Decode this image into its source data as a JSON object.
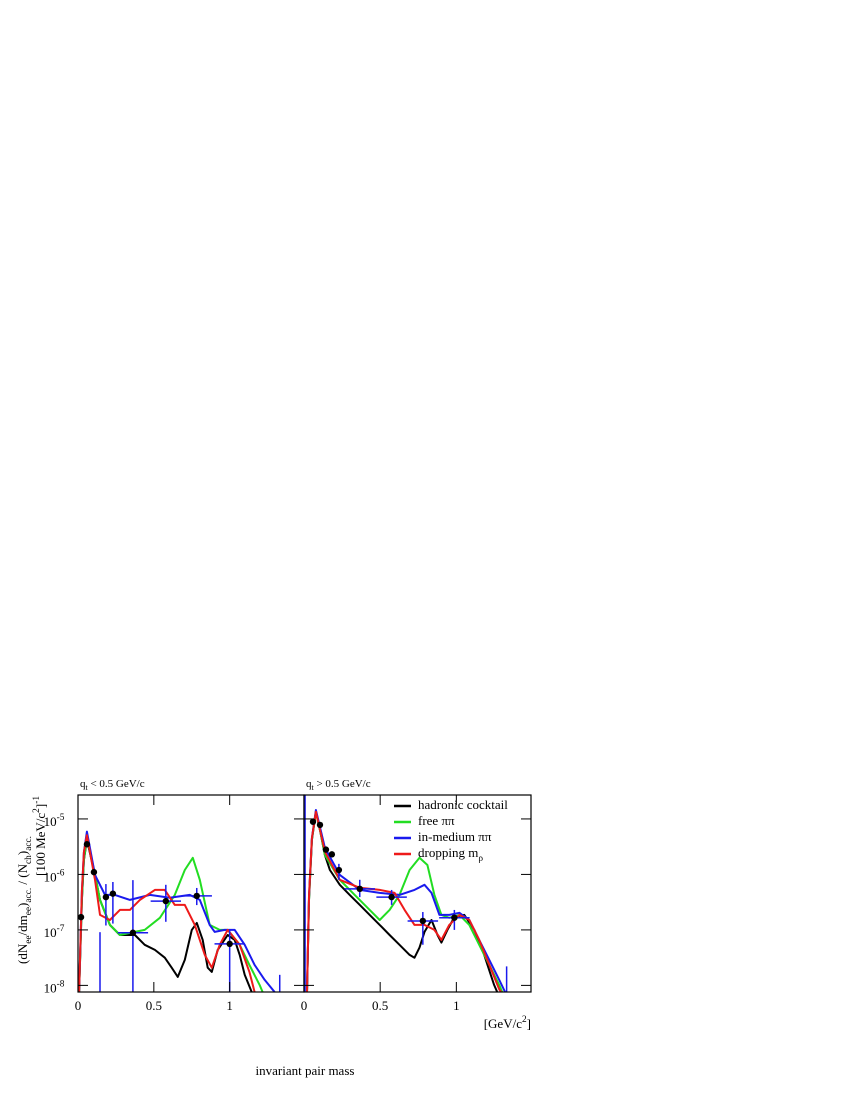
{
  "chart_data": [
    {
      "type": "line",
      "title": [
        {
          "text": "q"
        },
        {
          "text": "t",
          "shift": "sub"
        },
        {
          "text": " < 0.5 GeV/c"
        }
      ],
      "ylabel": [
        [
          {
            "text": "(dN"
          },
          {
            "text": "ee",
            "shift": "sub"
          },
          {
            "text": "/dm"
          },
          {
            "text": "ee",
            "shift": "sub"
          },
          {
            "text": ")"
          },
          {
            "text": "acc.",
            "shift": "sub"
          },
          {
            "text": " / (N"
          },
          {
            "text": "ch",
            "shift": "sub"
          },
          {
            "text": ")"
          },
          {
            "text": "acc.",
            "shift": "sub"
          }
        ],
        [
          {
            "text": "[100 MeV/c"
          },
          {
            "text": "2",
            "shift": "super"
          },
          {
            "text": "]"
          },
          {
            "text": "-1",
            "shift": "super"
          }
        ]
      ],
      "xlabel": "invariant pair mass",
      "xlim": [
        0,
        1.49
      ],
      "xticks": [
        0,
        0.5,
        1
      ],
      "ylim": [
        7.6e-09,
        2.7e-05
      ],
      "log_y": true,
      "yticks": [
        {
          "value": 1e-08,
          "label": "10",
          "sup": "-8"
        },
        {
          "value": 1e-07,
          "label": "10",
          "sup": "-7"
        },
        {
          "value": 1e-06,
          "label": "10",
          "sup": "-6"
        },
        {
          "value": 1e-05,
          "label": "10",
          "sup": "-5"
        }
      ],
      "series": [
        {
          "color": "#000000",
          "x": [
            0.007,
            0.026,
            0.039,
            0.059,
            0.112,
            0.145,
            0.21,
            0.276,
            0.375,
            0.44,
            0.507,
            0.572,
            0.618,
            0.658,
            0.704,
            0.75,
            0.783,
            0.822,
            0.855,
            0.882,
            0.921,
            0.987,
            1.033,
            1.066,
            1.099,
            1.145
          ],
          "values": [
            7.6e-09,
            3.5e-07,
            1.82e-06,
            4.2e-06,
            9.8e-07,
            3.47e-07,
            1.23e-07,
            8.1e-08,
            8.1e-08,
            5.4e-08,
            4.37e-08,
            3.15e-08,
            2.08e-08,
            1.42e-08,
            2.88e-08,
            1e-07,
            1.34e-07,
            6.6e-08,
            2.08e-08,
            1.75e-08,
            4.37e-08,
            8.1e-08,
            6.6e-08,
            3.55e-08,
            1.55e-08,
            7.6e-09
          ]
        },
        {
          "color": "#22dd22",
          "x": [
            0.007,
            0.026,
            0.039,
            0.059,
            0.112,
            0.145,
            0.21,
            0.276,
            0.375,
            0.44,
            0.54,
            0.638,
            0.704,
            0.757,
            0.803,
            0.868,
            0.934,
            0.987,
            1.066,
            1.13,
            1.197,
            1.217
          ],
          "values": [
            7.6e-09,
            3.5e-07,
            1.82e-06,
            4.6e-06,
            1e-06,
            3.47e-07,
            1.23e-07,
            8.1e-08,
            9.2e-08,
            1e-07,
            1.65e-07,
            4.27e-07,
            1.2e-06,
            1.99e-06,
            8e-07,
            1.23e-07,
            1e-07,
            1e-07,
            5.4e-08,
            2.34e-08,
            1.02e-08,
            7.6e-09
          ]
        },
        {
          "color": "#1a1aee",
          "x": [
            0.007,
            0.026,
            0.039,
            0.059,
            0.112,
            0.178,
            0.243,
            0.342,
            0.474,
            0.605,
            0.737,
            0.803,
            0.868,
            0.901,
            0.967,
            1.033,
            1.099,
            1.164,
            1.23,
            1.296
          ],
          "values": [
            7.6e-09,
            5e-07,
            2.5e-06,
            5.9e-06,
            9.8e-07,
            4.27e-07,
            4.27e-07,
            3.47e-07,
            4.27e-07,
            3.8e-07,
            4.27e-07,
            3.47e-07,
            1.23e-07,
            9.2e-08,
            1e-07,
            1e-07,
            5.4e-08,
            2.34e-08,
            1.26e-08,
            7.6e-09
          ]
        },
        {
          "color": "#ee1a1a",
          "x": [
            0.007,
            0.026,
            0.039,
            0.059,
            0.112,
            0.145,
            0.21,
            0.276,
            0.342,
            0.408,
            0.507,
            0.572,
            0.638,
            0.704,
            0.77,
            0.836,
            0.882,
            0.934,
            0.987,
            1.066,
            1.13,
            1.164
          ],
          "values": [
            7.6e-09,
            5e-07,
            2.5e-06,
            5.1e-06,
            8e-07,
            1.86e-07,
            1.51e-07,
            2.29e-07,
            2.29e-07,
            3.47e-07,
            5.25e-07,
            5.25e-07,
            2.82e-07,
            2.82e-07,
            1.23e-07,
            3.55e-08,
            2.08e-08,
            5.4e-08,
            1e-07,
            5.4e-08,
            1.75e-08,
            7.6e-09
          ]
        }
      ],
      "points": {
        "color": "#000000",
        "bar_color": "#1a1aee",
        "x": [
          0.02,
          0.059,
          0.105,
          0.184,
          0.23,
          0.362,
          0.579,
          0.783,
          1.0
        ],
        "y": [
          1.7e-07,
          3.5e-06,
          1.1e-06,
          3.9e-07,
          4.5e-07,
          8.9e-08,
          3.3e-07,
          4.1e-07,
          5.6e-08
        ],
        "xerr": [
          0,
          0,
          0,
          0,
          0,
          0.1,
          0.1,
          0.1,
          0.1
        ],
        "yhigh": [
          null,
          null,
          null,
          6.7e-07,
          7.3e-07,
          7.9e-07,
          6.5e-07,
          5.7e-07,
          1e-07
        ],
        "ylow": [
          null,
          null,
          null,
          1.2e-07,
          1.3e-07,
          1e-09,
          1.4e-07,
          2.8e-07,
          1e-09
        ]
      },
      "bars": {
        "x": [
          0.145,
          1.33
        ],
        "yhigh": [
          9.1e-08,
          1.55e-08
        ]
      }
    },
    {
      "type": "line",
      "title": [
        {
          "text": "q"
        },
        {
          "text": "t",
          "shift": "sub"
        },
        {
          "text": " > 0.5 GeV/c"
        }
      ],
      "xunit": [
        {
          "text": "[GeV/c"
        },
        {
          "text": "2",
          "shift": "super"
        },
        {
          "text": "]"
        }
      ],
      "xlim": [
        0,
        1.49
      ],
      "xticks": [
        0,
        0.5,
        1
      ],
      "ylim": [
        7.6e-09,
        2.7e-05
      ],
      "log_y": true,
      "yticks": [
        1e-08,
        1e-07,
        1e-06,
        1e-05
      ],
      "legend": "upper right",
      "series": [
        {
          "name": "hadronic cocktail",
          "color": "#000000",
          "x": [
            0.02,
            0.033,
            0.052,
            0.078,
            0.105,
            0.137,
            0.17,
            0.235,
            0.3,
            0.366,
            0.431,
            0.497,
            0.562,
            0.627,
            0.693,
            0.725,
            0.758,
            0.791,
            0.837,
            0.876,
            0.902,
            0.941,
            0.987,
            1.052,
            1.118,
            1.183,
            1.248,
            1.268
          ],
          "values": [
            7.6e-09,
            3.47e-07,
            4.2e-06,
            1.35e-05,
            6.3e-06,
            2.24e-06,
            1.2e-06,
            6.5e-07,
            4.27e-07,
            2.82e-07,
            1.86e-07,
            1.23e-07,
            8.1e-08,
            5.4e-08,
            3.55e-08,
            3.15e-08,
            4.8e-08,
            9.2e-08,
            1.51e-07,
            8.1e-08,
            5.9e-08,
            1e-07,
            1.7e-07,
            1.86e-07,
            1e-07,
            3.55e-08,
            1.02e-08,
            7.6e-09
          ]
        },
        {
          "name": "free ππ",
          "color": "#22dd22",
          "x": [
            0.02,
            0.033,
            0.052,
            0.078,
            0.105,
            0.137,
            0.235,
            0.333,
            0.431,
            0.497,
            0.562,
            0.627,
            0.693,
            0.758,
            0.81,
            0.856,
            0.902,
            0.954,
            1.02,
            1.085,
            1.15,
            1.216,
            1.281,
            1.301
          ],
          "values": [
            7.6e-09,
            3.47e-07,
            4.2e-06,
            1.35e-05,
            6.3e-06,
            2.24e-06,
            8e-07,
            4.27e-07,
            2.29e-07,
            1.51e-07,
            2.29e-07,
            4.27e-07,
            1.2e-06,
            1.99e-06,
            1.48e-06,
            4.27e-07,
            1.86e-07,
            1.65e-07,
            1.86e-07,
            1.23e-07,
            5.4e-08,
            2.34e-08,
            1.02e-08,
            7.6e-09
          ]
        },
        {
          "name": "in-medium ππ",
          "color": "#1a1aee",
          "x": [
            0.02,
            0.033,
            0.052,
            0.078,
            0.137,
            0.235,
            0.366,
            0.497,
            0.627,
            0.725,
            0.791,
            0.837,
            0.889,
            0.954,
            1.02,
            1.085,
            1.15,
            1.216,
            1.281,
            1.32
          ],
          "values": [
            7.6e-09,
            4e-07,
            4.5e-06,
            1.45e-05,
            3e-06,
            9.8e-07,
            5.25e-07,
            4.65e-07,
            4.27e-07,
            5.25e-07,
            6.5e-07,
            4.65e-07,
            1.86e-07,
            1.86e-07,
            2.03e-07,
            1.51e-07,
            6.6e-08,
            2.88e-08,
            1.26e-08,
            7.6e-09
          ]
        },
        {
          "name": [
            {
              "text": "dropping m"
            },
            {
              "text": "ρ",
              "shift": "sub"
            }
          ],
          "color": "#ee1a1a",
          "x": [
            0.02,
            0.033,
            0.052,
            0.078,
            0.137,
            0.235,
            0.366,
            0.497,
            0.595,
            0.66,
            0.725,
            0.791,
            0.856,
            0.902,
            0.954,
            1.02,
            1.085,
            1.15,
            1.216,
            1.281,
            1.294
          ],
          "values": [
            7.6e-09,
            4e-07,
            4.5e-06,
            1.35e-05,
            2.57e-06,
            8e-07,
            5.75e-07,
            5.25e-07,
            4.65e-07,
            2.29e-07,
            1.23e-07,
            1.23e-07,
            1e-07,
            6.6e-08,
            1.23e-07,
            1.86e-07,
            1.51e-07,
            6.6e-08,
            2.34e-08,
            8.5e-09,
            7.6e-09
          ]
        }
      ],
      "points": {
        "color": "#000000",
        "bar_color": "#1a1aee",
        "x": [
          0.059,
          0.105,
          0.144,
          0.183,
          0.229,
          0.366,
          0.575,
          0.78,
          0.987
        ],
        "y": [
          8.9e-06,
          7.8e-06,
          2.8e-06,
          2.3e-06,
          1.2e-06,
          5.5e-07,
          3.9e-07,
          1.45e-07,
          1.66e-07
        ],
        "xerr": [
          0,
          0,
          0,
          0,
          0,
          0.1,
          0.1,
          0.1,
          0.1
        ],
        "yhigh": [
          null,
          null,
          null,
          null,
          1.55e-06,
          8e-07,
          5.25e-07,
          2.1e-07,
          2.29e-07
        ],
        "ylow": [
          null,
          null,
          null,
          null,
          8e-07,
          3.9e-07,
          2.82e-07,
          5.4e-08,
          1e-07
        ]
      },
      "bars": {
        "x": [
          0.007,
          1.33
        ],
        "yhigh": [
          3e-05,
          2.2e-08
        ]
      }
    }
  ]
}
